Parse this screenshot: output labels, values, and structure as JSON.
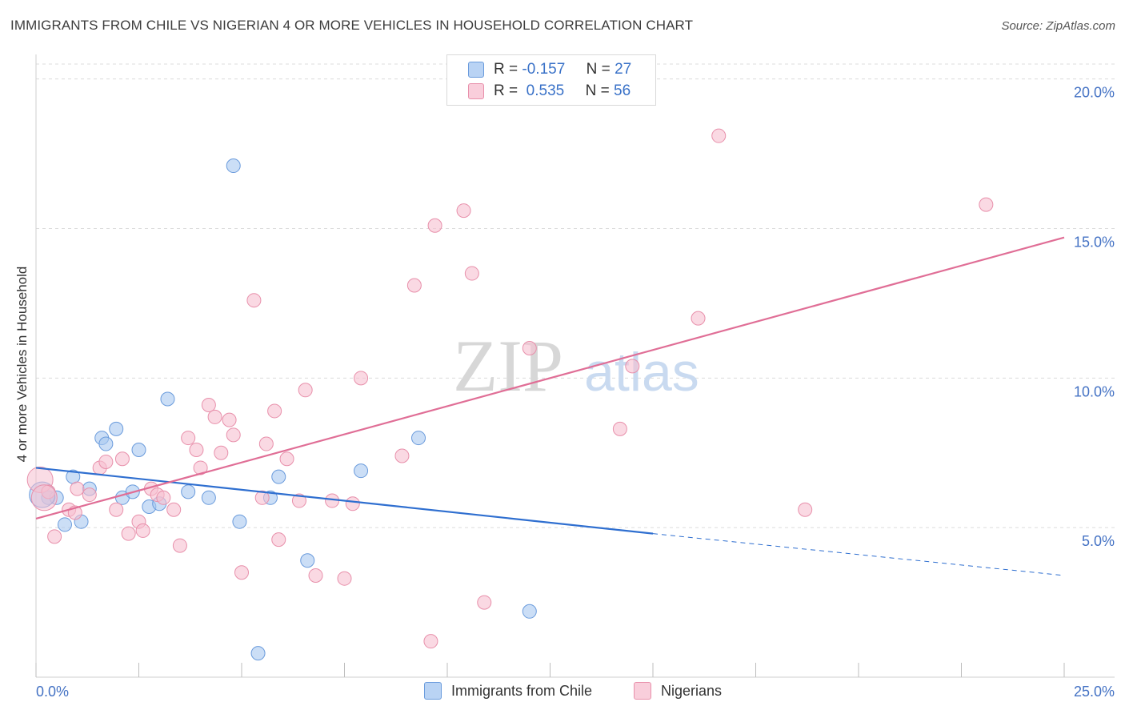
{
  "title": "IMMIGRANTS FROM CHILE VS NIGERIAN 4 OR MORE VEHICLES IN HOUSEHOLD CORRELATION CHART",
  "source": "Source: ZipAtlas.com",
  "watermark": {
    "zip": "ZIP",
    "atlas": "atlas"
  },
  "legend": {
    "rows": [
      {
        "r_label": "R =",
        "r_value": "-0.157",
        "n_label": "N =",
        "n_value": "27"
      },
      {
        "r_label": "R =",
        "r_value": "0.535",
        "n_label": "N =",
        "n_value": "56"
      }
    ]
  },
  "bottom_legend": [
    "Immigrants from Chile",
    "Nigerians"
  ],
  "colors": {
    "blue_fill": "#a9c8f0",
    "blue_stroke": "#6a9bdc",
    "blue_line": "#2f6fd0",
    "pink_fill": "#f6bfd0",
    "pink_stroke": "#e890ab",
    "pink_line": "#e06e96",
    "tick_text": "#4472c4",
    "grid": "#dcdcdc"
  },
  "chart_data": {
    "type": "scatter",
    "title": "IMMIGRANTS FROM CHILE VS NIGERIAN 4 OR MORE VEHICLES IN HOUSEHOLD CORRELATION CHART",
    "xlabel": "",
    "ylabel": "4 or more Vehicles in Household",
    "xlim": [
      0,
      25
    ],
    "ylim": [
      0,
      20.5
    ],
    "x_tick_labels": [
      "0.0%",
      "25.0%"
    ],
    "y_ticks": [
      5,
      10,
      15,
      20
    ],
    "y_tick_labels": [
      "5.0%",
      "10.0%",
      "15.0%",
      "20.0%"
    ],
    "grid": true,
    "series": [
      {
        "name": "Immigrants from Chile",
        "r": -0.157,
        "n": 27,
        "points": [
          [
            0.3,
            6.0
          ],
          [
            0.5,
            6.0
          ],
          [
            0.7,
            5.1
          ],
          [
            0.9,
            6.7
          ],
          [
            1.1,
            5.2
          ],
          [
            1.3,
            6.3
          ],
          [
            1.6,
            8.0
          ],
          [
            1.7,
            7.8
          ],
          [
            1.95,
            8.3
          ],
          [
            2.1,
            6.0
          ],
          [
            2.35,
            6.2
          ],
          [
            2.5,
            7.6
          ],
          [
            2.75,
            5.7
          ],
          [
            3.0,
            5.8
          ],
          [
            3.2,
            9.3
          ],
          [
            3.7,
            6.2
          ],
          [
            4.2,
            6.0
          ],
          [
            4.8,
            17.1
          ],
          [
            4.95,
            5.2
          ],
          [
            5.4,
            0.8
          ],
          [
            5.7,
            6.0
          ],
          [
            5.9,
            6.7
          ],
          [
            6.6,
            3.9
          ],
          [
            7.9,
            6.9
          ],
          [
            9.3,
            8.0
          ],
          [
            12.0,
            2.2
          ],
          [
            0.15,
            6.1
          ]
        ],
        "trend": {
          "x": [
            0,
            15
          ],
          "y": [
            7.0,
            4.8
          ],
          "dashed_to": [
            25,
            3.4
          ]
        }
      },
      {
        "name": "Nigerians",
        "r": 0.535,
        "n": 56,
        "points": [
          [
            0.1,
            6.6
          ],
          [
            0.3,
            6.2
          ],
          [
            0.45,
            4.7
          ],
          [
            0.8,
            5.6
          ],
          [
            0.95,
            5.5
          ],
          [
            1.0,
            6.3
          ],
          [
            1.3,
            6.1
          ],
          [
            1.55,
            7.0
          ],
          [
            1.7,
            7.2
          ],
          [
            1.95,
            5.6
          ],
          [
            2.1,
            7.3
          ],
          [
            2.25,
            4.8
          ],
          [
            2.5,
            5.2
          ],
          [
            2.6,
            4.9
          ],
          [
            2.8,
            6.3
          ],
          [
            2.95,
            6.1
          ],
          [
            3.1,
            6.0
          ],
          [
            3.35,
            5.6
          ],
          [
            3.5,
            4.4
          ],
          [
            3.7,
            8.0
          ],
          [
            3.9,
            7.6
          ],
          [
            4.0,
            7.0
          ],
          [
            4.2,
            9.1
          ],
          [
            4.35,
            8.7
          ],
          [
            4.5,
            7.5
          ],
          [
            4.7,
            8.6
          ],
          [
            4.8,
            8.1
          ],
          [
            5.0,
            3.5
          ],
          [
            5.3,
            12.6
          ],
          [
            5.5,
            6.0
          ],
          [
            5.6,
            7.8
          ],
          [
            5.8,
            8.9
          ],
          [
            5.9,
            4.6
          ],
          [
            6.1,
            7.3
          ],
          [
            6.4,
            5.9
          ],
          [
            6.55,
            9.6
          ],
          [
            6.8,
            3.4
          ],
          [
            7.2,
            5.9
          ],
          [
            7.5,
            3.3
          ],
          [
            7.7,
            5.8
          ],
          [
            7.9,
            10.0
          ],
          [
            8.9,
            7.4
          ],
          [
            9.2,
            13.1
          ],
          [
            9.6,
            1.2
          ],
          [
            9.7,
            15.1
          ],
          [
            10.4,
            15.6
          ],
          [
            10.6,
            13.5
          ],
          [
            10.9,
            2.5
          ],
          [
            12.0,
            11.0
          ],
          [
            14.2,
            8.3
          ],
          [
            14.5,
            10.4
          ],
          [
            16.1,
            12.0
          ],
          [
            16.6,
            18.1
          ],
          [
            18.7,
            5.6
          ],
          [
            23.1,
            15.8
          ],
          [
            0.2,
            6.0
          ]
        ],
        "trend": {
          "x": [
            0,
            25
          ],
          "y": [
            5.3,
            14.7
          ]
        }
      }
    ]
  }
}
